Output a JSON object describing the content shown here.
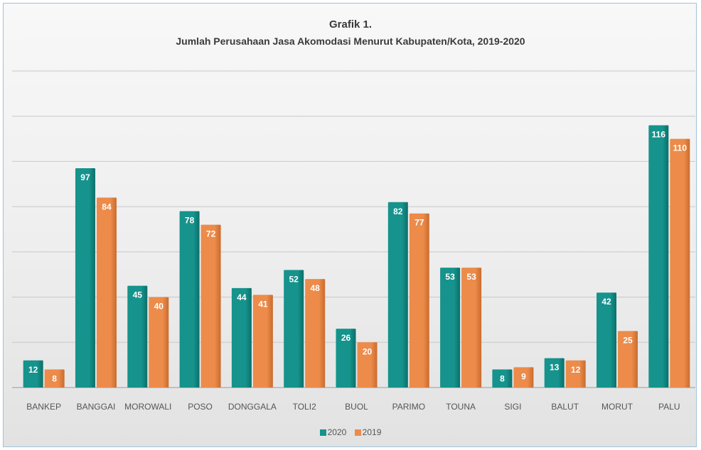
{
  "chart_data": {
    "type": "bar",
    "title": "Grafik 1.",
    "subtitle": "Jumlah Perusahaan Jasa Akomodasi Menurut Kabupaten/Kota, 2019-2020",
    "categories": [
      "BANKEP",
      "BANGGAI",
      "MOROWALI",
      "POSO",
      "DONGGALA",
      "TOLI2",
      "BUOL",
      "PARIMO",
      "TOUNA",
      "SIGI",
      "BALUT",
      "MORUT",
      "PALU"
    ],
    "series": [
      {
        "name": "2020",
        "color": "#15938c",
        "values": [
          12,
          97,
          45,
          78,
          44,
          52,
          26,
          82,
          53,
          8,
          13,
          42,
          116
        ]
      },
      {
        "name": "2019",
        "color": "#ec8b4a",
        "values": [
          8,
          84,
          40,
          72,
          41,
          48,
          20,
          77,
          53,
          9,
          12,
          25,
          110
        ]
      }
    ],
    "ylim": [
      0,
      140
    ],
    "grid": true,
    "legend_position": "bottom",
    "data_labels": true
  }
}
